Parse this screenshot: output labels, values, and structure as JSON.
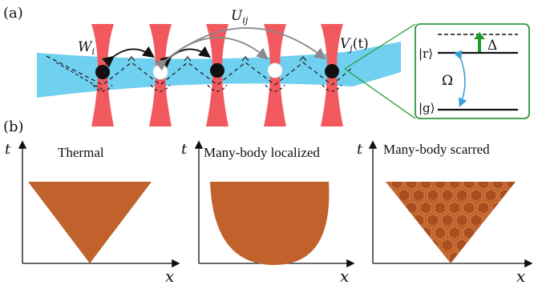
{
  "panel_a": {
    "label": "(a)",
    "hop_label": "W",
    "hop_sub": "i",
    "interaction_label": "U",
    "interaction_sub": "ij",
    "drive_label": "V",
    "drive_sub": "j",
    "drive_arg": "(t)",
    "inset": {
      "rydberg_state": "|r⟩",
      "ground_state": "|g⟩",
      "detuning": "Δ",
      "rabi": "Ω"
    },
    "colors": {
      "beam": "#6fd0f0",
      "tweezer": "#f2595f",
      "atom": "#111111",
      "inset_border": "#2e9a3a",
      "detuning_arrow": "#1c9a2a",
      "rabi_arrow": "#3aa0d8"
    }
  },
  "panel_b": {
    "label": "(b)",
    "axis_t": "t",
    "axis_x": "x",
    "plots": [
      {
        "title": "Thermal",
        "shape": "triangle"
      },
      {
        "title": "Many-body localized",
        "shape": "parabola"
      },
      {
        "title": "Many-body scarred",
        "shape": "honeycomb-triangle"
      }
    ],
    "fill_color": "#c1622c"
  }
}
